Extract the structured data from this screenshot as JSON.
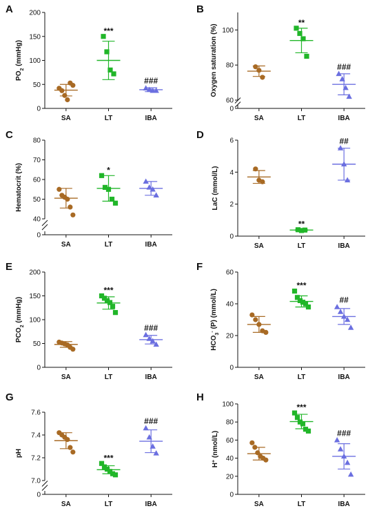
{
  "colors": {
    "SA": "#A86A24",
    "LT": "#21B629",
    "IBA": "#6B6FE0"
  },
  "chart_data": [
    {
      "id": "A",
      "panel_letter": "A",
      "type": "scatter",
      "ylabel": "PO₂ (mmHg)",
      "ylabel_main": "PO",
      "ylabel_sub": "2",
      "ylabel_rest": " (mmHg)",
      "ylim": [
        0,
        200
      ],
      "yticks": [
        0,
        50,
        100,
        150,
        200
      ],
      "axis_break": false,
      "categories": [
        "SA",
        "LT",
        "IBA"
      ],
      "series": [
        {
          "name": "SA",
          "marker": "circle",
          "points": [
            42,
            37,
            27,
            18,
            53,
            48
          ],
          "mean": 38,
          "sd": 12,
          "sig": ""
        },
        {
          "name": "LT",
          "marker": "square",
          "points": [
            150,
            118,
            80,
            72
          ],
          "mean": 100,
          "sd": 40,
          "sig": "***"
        },
        {
          "name": "IBA",
          "marker": "triangle",
          "points": [
            42,
            39,
            37,
            37
          ],
          "mean": 39,
          "sd": 4,
          "sig": "###"
        }
      ]
    },
    {
      "id": "B",
      "panel_letter": "B",
      "type": "scatter",
      "ylabel": "Oxygen saturation (%)",
      "ylim": [
        60,
        110
      ],
      "yticks": [
        60,
        80,
        100
      ],
      "axis_break": true,
      "break_floor_label": "0",
      "categories": [
        "SA",
        "LT",
        "IBA"
      ],
      "series": [
        {
          "name": "SA",
          "marker": "circle",
          "points": [
            79,
            77,
            73
          ],
          "mean": 76.5,
          "sd": 3,
          "sig": ""
        },
        {
          "name": "LT",
          "marker": "square",
          "points": [
            101,
            98,
            95,
            85
          ],
          "mean": 94,
          "sd": 7,
          "sig": "**"
        },
        {
          "name": "IBA",
          "marker": "triangle",
          "points": [
            75,
            72,
            67,
            62
          ],
          "mean": 69,
          "sd": 6,
          "sig": "###"
        }
      ]
    },
    {
      "id": "C",
      "panel_letter": "C",
      "type": "scatter",
      "ylabel": "Hematocrit (%)",
      "ylim": [
        40,
        80
      ],
      "yticks": [
        40,
        50,
        60,
        70,
        80
      ],
      "axis_break": true,
      "break_floor_label": "0",
      "categories": [
        "SA",
        "LT",
        "IBA"
      ],
      "series": [
        {
          "name": "SA",
          "marker": "circle",
          "points": [
            55,
            52,
            51,
            50,
            46,
            42
          ],
          "mean": 50.5,
          "sd": 5,
          "sig": ""
        },
        {
          "name": "LT",
          "marker": "square",
          "points": [
            62,
            56,
            55,
            50,
            48
          ],
          "mean": 55.5,
          "sd": 6.5,
          "sig": "*"
        },
        {
          "name": "IBA",
          "marker": "triangle",
          "points": [
            59,
            56,
            55,
            52
          ],
          "mean": 55.5,
          "sd": 3.5,
          "sig": ""
        }
      ]
    },
    {
      "id": "D",
      "panel_letter": "D",
      "type": "scatter",
      "ylabel": "LaC (mmol/L)",
      "ylim": [
        0,
        6
      ],
      "yticks": [
        0,
        2,
        4,
        6
      ],
      "axis_break": false,
      "categories": [
        "SA",
        "LT",
        "IBA"
      ],
      "series": [
        {
          "name": "SA",
          "marker": "circle",
          "points": [
            4.2,
            3.5,
            3.4
          ],
          "mean": 3.7,
          "sd": 0.4,
          "sig": ""
        },
        {
          "name": "LT",
          "marker": "square",
          "points": [
            0.4,
            0.35,
            0.38
          ],
          "mean": 0.38,
          "sd": 0.04,
          "sig": "**"
        },
        {
          "name": "IBA",
          "marker": "triangle",
          "points": [
            5.5,
            4.5,
            3.5
          ],
          "mean": 4.5,
          "sd": 1.0,
          "sig": "##"
        }
      ]
    },
    {
      "id": "E",
      "panel_letter": "E",
      "type": "scatter",
      "ylabel": "PCO₂ (mmHg)",
      "ylabel_main": "PCO",
      "ylabel_sub": "2",
      "ylabel_rest": " (mmHg)",
      "ylim": [
        0,
        200
      ],
      "yticks": [
        0,
        50,
        100,
        150,
        200
      ],
      "axis_break": false,
      "categories": [
        "SA",
        "LT",
        "IBA"
      ],
      "series": [
        {
          "name": "SA",
          "marker": "circle",
          "points": [
            53,
            51,
            49,
            47,
            42,
            38
          ],
          "mean": 48,
          "sd": 6,
          "sig": ""
        },
        {
          "name": "LT",
          "marker": "square",
          "points": [
            150,
            145,
            140,
            136,
            128,
            115
          ],
          "mean": 135,
          "sd": 13,
          "sig": "***"
        },
        {
          "name": "IBA",
          "marker": "triangle",
          "points": [
            68,
            60,
            55,
            48
          ],
          "mean": 58,
          "sd": 9,
          "sig": "###"
        }
      ]
    },
    {
      "id": "F",
      "panel_letter": "F",
      "type": "scatter",
      "ylabel": "HCO₃⁻ (P) (mmol/L)",
      "ylabel_main": "HCO",
      "ylabel_sub": "3",
      "ylabel_sup": "-",
      "ylabel_rest": " (P) (mmol/L)",
      "ylim": [
        0,
        60
      ],
      "yticks": [
        0,
        20,
        40,
        60
      ],
      "axis_break": false,
      "categories": [
        "SA",
        "LT",
        "IBA"
      ],
      "series": [
        {
          "name": "SA",
          "marker": "circle",
          "points": [
            33,
            30,
            27,
            23,
            22
          ],
          "mean": 27,
          "sd": 5,
          "sig": ""
        },
        {
          "name": "LT",
          "marker": "square",
          "points": [
            48,
            44,
            42,
            41,
            40,
            38
          ],
          "mean": 41.5,
          "sd": 3.5,
          "sig": "***"
        },
        {
          "name": "IBA",
          "marker": "triangle",
          "points": [
            38,
            35,
            32,
            30,
            25
          ],
          "mean": 32,
          "sd": 5,
          "sig": "##"
        }
      ]
    },
    {
      "id": "G",
      "panel_letter": "G",
      "type": "scatter",
      "ylabel": "pH",
      "ylim": [
        7.0,
        7.6
      ],
      "yticks": [
        7.0,
        7.2,
        7.4,
        7.6
      ],
      "ytick_decimals": 1,
      "axis_break": true,
      "break_floor_label": "0",
      "categories": [
        "SA",
        "LT",
        "IBA"
      ],
      "series": [
        {
          "name": "SA",
          "marker": "circle",
          "points": [
            7.42,
            7.4,
            7.38,
            7.36,
            7.29,
            7.25
          ],
          "mean": 7.35,
          "sd": 0.07,
          "sig": ""
        },
        {
          "name": "LT",
          "marker": "square",
          "points": [
            7.15,
            7.12,
            7.1,
            7.08,
            7.06,
            7.05
          ],
          "mean": 7.095,
          "sd": 0.035,
          "sig": "***"
        },
        {
          "name": "IBA",
          "marker": "triangle",
          "points": [
            7.46,
            7.38,
            7.3,
            7.24
          ],
          "mean": 7.345,
          "sd": 0.1,
          "sig": "###"
        }
      ]
    },
    {
      "id": "H",
      "panel_letter": "H",
      "type": "scatter",
      "ylabel": "H⁺ (nmol/L)",
      "ylabel_main": "H",
      "ylabel_sup": "+",
      "ylabel_rest": " (nmol/L)",
      "ylim": [
        0,
        100
      ],
      "yticks": [
        0,
        20,
        40,
        60,
        80,
        100
      ],
      "axis_break": false,
      "categories": [
        "SA",
        "LT",
        "IBA"
      ],
      "series": [
        {
          "name": "SA",
          "marker": "circle",
          "points": [
            57,
            52,
            46,
            42,
            40,
            38
          ],
          "mean": 45,
          "sd": 7,
          "sig": ""
        },
        {
          "name": "LT",
          "marker": "square",
          "points": [
            90,
            85,
            80,
            78,
            72,
            70
          ],
          "mean": 80.5,
          "sd": 8,
          "sig": "***"
        },
        {
          "name": "IBA",
          "marker": "triangle",
          "points": [
            60,
            50,
            42,
            35,
            22
          ],
          "mean": 42,
          "sd": 14,
          "sig": "###"
        }
      ]
    }
  ]
}
